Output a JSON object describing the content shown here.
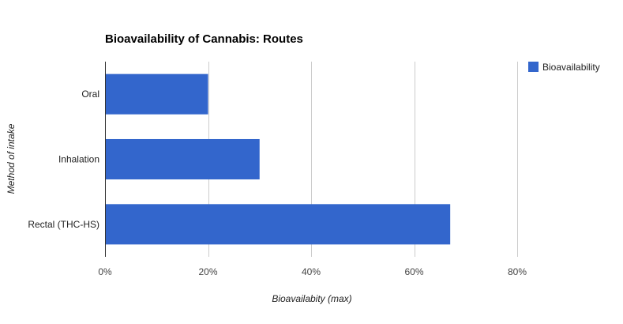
{
  "chart_data": {
    "type": "bar",
    "orientation": "horizontal",
    "title": "Bioavailability of Cannabis: Routes",
    "xlabel": "Bioavailabity (max)",
    "ylabel": "Method of intake",
    "categories": [
      "Oral",
      "Inhalation",
      "Rectal (THC-HS)"
    ],
    "series": [
      {
        "name": "Bioavailability",
        "values": [
          0.2,
          0.3,
          0.67
        ],
        "color": "#3366cc"
      }
    ],
    "xlim": [
      0,
      0.8
    ],
    "x_ticks": [
      0,
      0.2,
      0.4,
      0.6,
      0.8
    ],
    "x_tick_labels": [
      "0%",
      "20%",
      "40%",
      "60%",
      "80%"
    ],
    "grid": true,
    "legend_position": "top-right"
  }
}
